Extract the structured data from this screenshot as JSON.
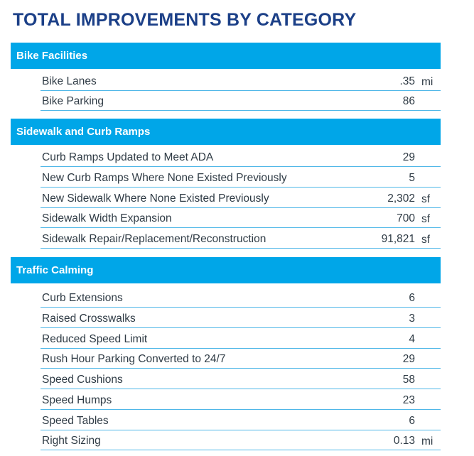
{
  "title": "TOTAL IMPROVEMENTS BY CATEGORY",
  "sections": [
    {
      "header": "Bike Facilities",
      "rows": [
        {
          "label": "Bike Lanes",
          "value": ".35",
          "unit": "mi"
        },
        {
          "label": "Bike Parking",
          "value": "86",
          "unit": ""
        }
      ]
    },
    {
      "header": "Sidewalk and Curb Ramps",
      "rows": [
        {
          "label": "Curb Ramps Updated to Meet ADA",
          "value": "29",
          "unit": ""
        },
        {
          "label": "New Curb Ramps Where None Existed Previously",
          "value": "5",
          "unit": ""
        },
        {
          "label": "New Sidewalk Where None Existed Previously",
          "value": "2,302",
          "unit": "sf"
        },
        {
          "label": "Sidewalk Width Expansion",
          "value": "700",
          "unit": "sf"
        },
        {
          "label": "Sidewalk Repair/Replacement/Reconstruction",
          "value": "91,821",
          "unit": "sf"
        }
      ]
    },
    {
      "header": "Traffic Calming",
      "rows": [
        {
          "label": "Curb Extensions",
          "value": "6",
          "unit": ""
        },
        {
          "label": "Raised Crosswalks",
          "value": "3",
          "unit": ""
        },
        {
          "label": "Reduced Speed Limit",
          "value": "4",
          "unit": ""
        },
        {
          "label": "Rush Hour Parking Converted to 24/7",
          "value": "29",
          "unit": ""
        },
        {
          "label": "Speed Cushions",
          "value": "58",
          "unit": ""
        },
        {
          "label": "Speed Humps",
          "value": "23",
          "unit": ""
        },
        {
          "label": "Speed Tables",
          "value": "6",
          "unit": ""
        },
        {
          "label": "Right Sizing",
          "value": "0.13",
          "unit": "mi"
        }
      ]
    }
  ]
}
